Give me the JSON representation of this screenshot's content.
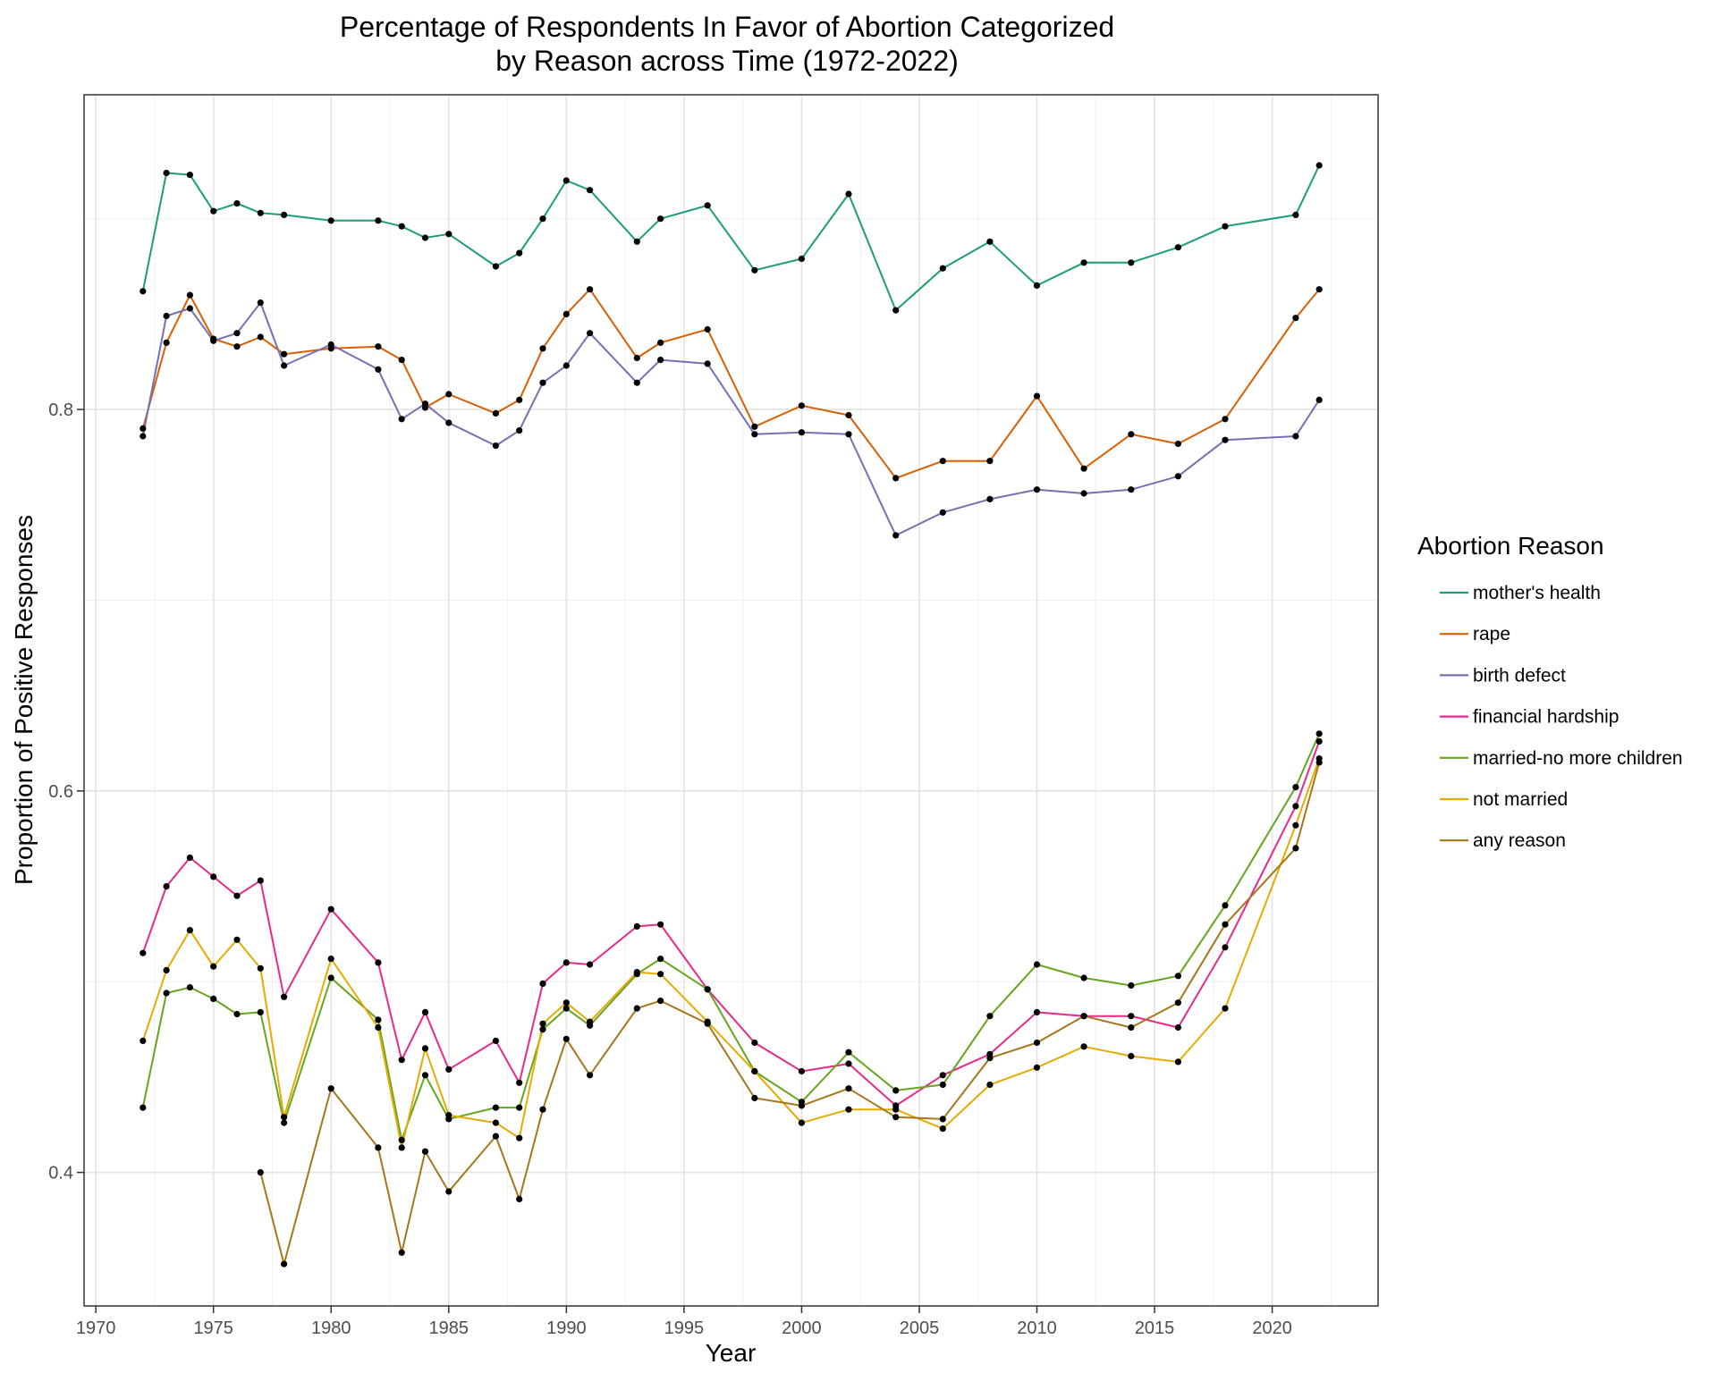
{
  "chart_data": {
    "type": "line",
    "title": "Percentage of Respondents In Favor of Abortion Categorized",
    "subtitle": "by Reason across Time (1972-2022)",
    "xlabel": "Year",
    "ylabel": "Proportion of Positive Responses",
    "xlim": [
      1969.5,
      2024.5
    ],
    "ylim": [
      0.33,
      0.965
    ],
    "x_ticks": [
      1970,
      1975,
      1980,
      1985,
      1990,
      1995,
      2000,
      2005,
      2010,
      2015,
      2020
    ],
    "y_ticks": [
      0.4,
      0.6,
      0.8
    ],
    "y_minor_ticks": [
      0.5,
      0.7,
      0.9
    ],
    "grid": true,
    "legend": {
      "title": "Abortion Reason",
      "position": "right"
    },
    "series": [
      {
        "name": "mother's health",
        "color": "#1b9e77",
        "x": [
          1972,
          1973,
          1974,
          1975,
          1976,
          1977,
          1978,
          1980,
          1982,
          1983,
          1984,
          1985,
          1987,
          1988,
          1989,
          1990,
          1991,
          1993,
          1994,
          1996,
          1998,
          2000,
          2002,
          2004,
          2006,
          2008,
          2010,
          2012,
          2014,
          2016,
          2018,
          2021,
          2022
        ],
        "y": [
          0.862,
          0.924,
          0.923,
          0.904,
          0.908,
          0.903,
          0.902,
          0.899,
          0.899,
          0.896,
          0.89,
          0.892,
          0.875,
          0.882,
          0.9,
          0.92,
          0.915,
          0.888,
          0.9,
          0.907,
          0.873,
          0.879,
          0.913,
          0.852,
          0.874,
          0.888,
          0.865,
          0.877,
          0.877,
          0.885,
          0.896,
          0.902,
          0.928
        ]
      },
      {
        "name": "rape",
        "color": "#d95f02",
        "x": [
          1972,
          1973,
          1974,
          1975,
          1976,
          1977,
          1978,
          1980,
          1982,
          1983,
          1984,
          1985,
          1987,
          1988,
          1989,
          1990,
          1991,
          1993,
          1994,
          1996,
          1998,
          2000,
          2002,
          2004,
          2006,
          2008,
          2010,
          2012,
          2014,
          2016,
          2018,
          2021,
          2022
        ],
        "y": [
          0.79,
          0.835,
          0.86,
          0.837,
          0.833,
          0.838,
          0.829,
          0.832,
          0.833,
          0.826,
          0.801,
          0.808,
          0.798,
          0.805,
          0.832,
          0.85,
          0.863,
          0.827,
          0.835,
          0.842,
          0.791,
          0.802,
          0.797,
          0.764,
          0.773,
          0.773,
          0.807,
          0.769,
          0.787,
          0.782,
          0.795,
          0.848,
          0.863
        ]
      },
      {
        "name": "birth defect",
        "color": "#7570b3",
        "x": [
          1972,
          1973,
          1974,
          1975,
          1976,
          1977,
          1978,
          1980,
          1982,
          1983,
          1984,
          1985,
          1987,
          1988,
          1989,
          1990,
          1991,
          1993,
          1994,
          1996,
          1998,
          2000,
          2002,
          2004,
          2006,
          2008,
          2010,
          2012,
          2014,
          2016,
          2018,
          2021,
          2022
        ],
        "y": [
          0.786,
          0.849,
          0.853,
          0.836,
          0.84,
          0.856,
          0.823,
          0.834,
          0.821,
          0.795,
          0.803,
          0.793,
          0.781,
          0.789,
          0.814,
          0.823,
          0.84,
          0.814,
          0.826,
          0.824,
          0.787,
          0.788,
          0.787,
          0.734,
          0.746,
          0.753,
          0.758,
          0.756,
          0.758,
          0.765,
          0.784,
          0.786,
          0.805
        ]
      },
      {
        "name": "financial hardship",
        "color": "#e7298a",
        "x": [
          1972,
          1973,
          1974,
          1975,
          1976,
          1977,
          1978,
          1980,
          1982,
          1983,
          1984,
          1985,
          1987,
          1988,
          1989,
          1990,
          1991,
          1993,
          1994,
          1996,
          1998,
          2000,
          2002,
          2004,
          2006,
          2008,
          2010,
          2012,
          2014,
          2016,
          2018,
          2021,
          2022
        ],
        "y": [
          0.515,
          0.55,
          0.565,
          0.555,
          0.545,
          0.553,
          0.492,
          0.538,
          0.51,
          0.459,
          0.484,
          0.454,
          0.469,
          0.447,
          0.499,
          0.51,
          0.509,
          0.529,
          0.53,
          0.496,
          0.468,
          0.453,
          0.457,
          0.435,
          0.451,
          0.462,
          0.484,
          0.482,
          0.482,
          0.476,
          0.518,
          0.592,
          0.626
        ]
      },
      {
        "name": "married-no more children",
        "color": "#66a61e",
        "x": [
          1972,
          1973,
          1974,
          1975,
          1976,
          1977,
          1978,
          1980,
          1982,
          1983,
          1984,
          1985,
          1987,
          1988,
          1989,
          1990,
          1991,
          1993,
          1994,
          1996,
          1998,
          2000,
          2002,
          2004,
          2006,
          2008,
          2010,
          2012,
          2014,
          2016,
          2018,
          2021,
          2022
        ],
        "y": [
          0.434,
          0.494,
          0.497,
          0.491,
          0.483,
          0.484,
          0.426,
          0.502,
          0.48,
          0.417,
          0.451,
          0.428,
          0.434,
          0.434,
          0.475,
          0.486,
          0.477,
          0.504,
          0.512,
          0.496,
          0.453,
          0.437,
          0.463,
          0.443,
          0.446,
          0.482,
          0.509,
          0.502,
          0.498,
          0.503,
          0.54,
          0.602,
          0.63
        ]
      },
      {
        "name": "not married",
        "color": "#e6ab02",
        "x": [
          1972,
          1973,
          1974,
          1975,
          1976,
          1977,
          1978,
          1980,
          1982,
          1983,
          1984,
          1985,
          1987,
          1988,
          1989,
          1990,
          1991,
          1993,
          1994,
          1996,
          1998,
          2000,
          2002,
          2004,
          2006,
          2008,
          2010,
          2012,
          2014,
          2016,
          2018,
          2021,
          2022
        ],
        "y": [
          0.469,
          0.506,
          0.527,
          0.508,
          0.522,
          0.507,
          0.429,
          0.512,
          0.476,
          0.413,
          0.465,
          0.43,
          0.426,
          0.418,
          0.478,
          0.489,
          0.479,
          0.505,
          0.504,
          0.479,
          0.453,
          0.426,
          0.433,
          0.433,
          0.423,
          0.446,
          0.455,
          0.466,
          0.461,
          0.458,
          0.486,
          0.582,
          0.617
        ]
      },
      {
        "name": "any reason",
        "color": "#a6761d",
        "x": [
          1977,
          1978,
          1980,
          1982,
          1983,
          1984,
          1985,
          1987,
          1988,
          1989,
          1990,
          1991,
          1993,
          1994,
          1996,
          1998,
          2000,
          2002,
          2004,
          2006,
          2008,
          2010,
          2012,
          2014,
          2016,
          2018,
          2021,
          2022
        ],
        "y": [
          0.4,
          0.352,
          0.444,
          0.413,
          0.358,
          0.411,
          0.39,
          0.419,
          0.386,
          0.433,
          0.47,
          0.451,
          0.486,
          0.49,
          0.478,
          0.439,
          0.435,
          0.444,
          0.429,
          0.428,
          0.46,
          0.468,
          0.482,
          0.476,
          0.489,
          0.53,
          0.57,
          0.615
        ]
      }
    ]
  }
}
